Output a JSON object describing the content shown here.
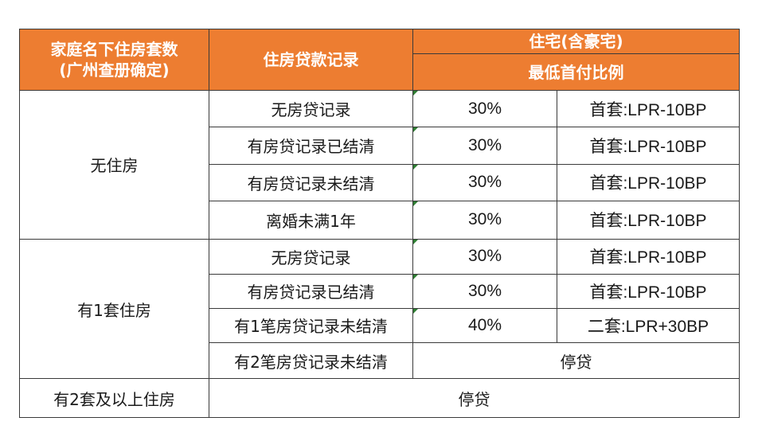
{
  "header": {
    "col1_line1": "家庭名下住房套数",
    "col1_line2": "(广州查册确定)",
    "col2": "住房贷款记录",
    "col3_top": "住宅(含豪宅)",
    "col3_bottom": "最低首付比例"
  },
  "groups": [
    {
      "label": "无住房",
      "rows": [
        {
          "record": "无房贷记录",
          "ratio": "30%",
          "rate": "首套:LPR-10BP"
        },
        {
          "record": "有房贷记录已结清",
          "ratio": "30%",
          "rate": "首套:LPR-10BP"
        },
        {
          "record": "有房贷记录未结清",
          "ratio": "30%",
          "rate": "首套:LPR-10BP"
        },
        {
          "record": "离婚未满1年",
          "ratio": "30%",
          "rate": "首套:LPR-10BP"
        }
      ]
    },
    {
      "label": "有1套住房",
      "rows": [
        {
          "record": "无房贷记录",
          "ratio": "30%",
          "rate": "首套:LPR-10BP"
        },
        {
          "record": "有房贷记录已结清",
          "ratio": "30%",
          "rate": "首套:LPR-10BP"
        },
        {
          "record": "有1笔房贷记录未结清",
          "ratio": "40%",
          "rate": "二套:LPR+30BP"
        },
        {
          "record": "有2笔房贷记录未结清",
          "merged": "停贷"
        }
      ]
    }
  ],
  "last_row": {
    "label": "有2套及以上住房",
    "merged": "停贷"
  }
}
